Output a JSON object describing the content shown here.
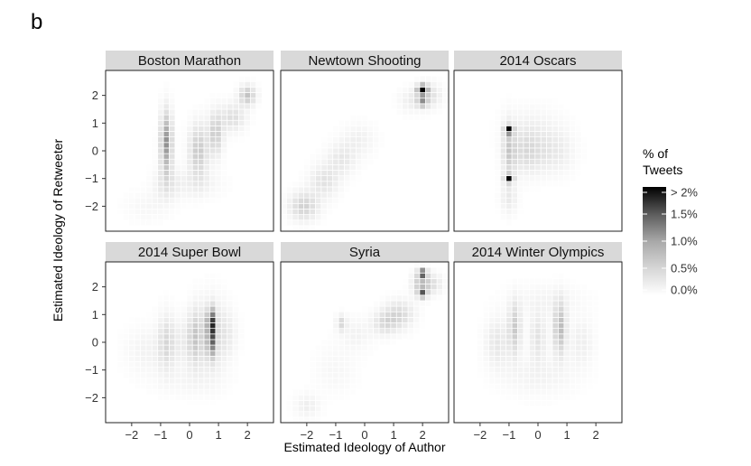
{
  "figure_label": "b",
  "chart_data": {
    "type": "heatmap",
    "xlabel": "Estimated Ideology of Author",
    "ylabel": "Estimated Ideology of Retweeter",
    "xlim": [
      -2.9,
      2.9
    ],
    "ylim": [
      -2.9,
      2.9
    ],
    "x_ticks": [
      -2,
      -1,
      0,
      1,
      2
    ],
    "y_ticks": [
      -2,
      -1,
      0,
      1,
      2
    ],
    "bin_width": 0.2,
    "grid": "white cell borders",
    "legend": {
      "title_lines": [
        "% of",
        "Tweets"
      ],
      "labels": [
        "> 2%",
        "1.5%",
        "1.0%",
        "0.5%",
        "0.0%"
      ],
      "values": [
        2.0,
        1.5,
        1.0,
        0.5,
        0.0
      ],
      "low_color": "#ffffff",
      "high_color": "#000000",
      "position": "right"
    },
    "panels": [
      {
        "title": "Boston Marathon",
        "blobs": [
          [
            -0.8,
            0.3,
            0.14,
            0.75,
            1.15
          ],
          [
            0.3,
            0.0,
            0.22,
            0.65,
            0.65
          ],
          [
            0.9,
            0.6,
            0.18,
            0.55,
            0.6
          ],
          [
            1.5,
            1.2,
            0.3,
            0.35,
            0.4
          ],
          [
            2.0,
            2.0,
            0.2,
            0.25,
            0.7
          ],
          [
            -0.8,
            -1.2,
            0.3,
            0.45,
            0.25
          ],
          [
            0.2,
            -1.2,
            0.6,
            0.35,
            0.18
          ],
          [
            -1.5,
            -2.0,
            0.5,
            0.4,
            0.1
          ]
        ]
      },
      {
        "title": "Newtown Shooting",
        "blobs": [
          [
            -2.1,
            -2.0,
            0.35,
            0.35,
            0.55
          ],
          [
            -1.4,
            -1.1,
            0.35,
            0.4,
            0.35
          ],
          [
            -0.8,
            -0.3,
            0.35,
            0.4,
            0.28
          ],
          [
            -0.2,
            0.4,
            0.4,
            0.4,
            0.18
          ],
          [
            2.0,
            2.2,
            0.12,
            0.13,
            2.0
          ],
          [
            2.0,
            1.75,
            0.12,
            0.12,
            0.9
          ],
          [
            2.2,
            2.0,
            0.3,
            0.3,
            0.4
          ],
          [
            1.6,
            1.8,
            0.3,
            0.3,
            0.2
          ]
        ]
      },
      {
        "title": "2014 Oscars",
        "blobs": [
          [
            -1.0,
            0.75,
            0.1,
            0.1,
            1.9
          ],
          [
            -1.0,
            -1.0,
            0.1,
            0.1,
            1.7
          ],
          [
            -1.0,
            0.0,
            0.15,
            0.7,
            0.5
          ],
          [
            -0.4,
            0.0,
            0.45,
            0.55,
            0.45
          ],
          [
            0.6,
            0.0,
            0.45,
            0.55,
            0.25
          ],
          [
            -1.0,
            -1.7,
            0.2,
            0.4,
            0.25
          ],
          [
            -0.2,
            1.0,
            0.7,
            0.5,
            0.1
          ]
        ]
      },
      {
        "title": "2014 Super Bowl",
        "blobs": [
          [
            0.75,
            0.75,
            0.1,
            0.35,
            1.4
          ],
          [
            0.75,
            0.0,
            0.1,
            0.4,
            1.1
          ],
          [
            0.75,
            0.25,
            0.35,
            0.9,
            0.35
          ],
          [
            0.2,
            0.2,
            0.18,
            0.7,
            0.5
          ],
          [
            -0.8,
            0.0,
            0.2,
            0.7,
            0.4
          ],
          [
            -0.2,
            0.0,
            0.35,
            0.6,
            0.2
          ],
          [
            -1.5,
            -0.3,
            0.5,
            0.6,
            0.15
          ],
          [
            1.3,
            0.3,
            0.25,
            0.6,
            0.2
          ],
          [
            0.0,
            -1.4,
            0.8,
            0.4,
            0.1
          ]
        ]
      },
      {
        "title": "Syria",
        "blobs": [
          [
            2.0,
            2.5,
            0.1,
            0.1,
            1.6
          ],
          [
            2.0,
            1.75,
            0.1,
            0.1,
            1.2
          ],
          [
            1.95,
            2.1,
            0.2,
            0.3,
            0.7
          ],
          [
            2.35,
            2.1,
            0.25,
            0.25,
            0.35
          ],
          [
            1.2,
            1.0,
            0.35,
            0.35,
            0.45
          ],
          [
            0.7,
            0.7,
            0.3,
            0.3,
            0.4
          ],
          [
            -0.8,
            0.7,
            0.12,
            0.2,
            0.45
          ],
          [
            -0.3,
            0.3,
            0.4,
            0.4,
            0.15
          ],
          [
            -2.0,
            -2.3,
            0.3,
            0.3,
            0.2
          ],
          [
            -1.0,
            -1.0,
            0.5,
            0.6,
            0.1
          ]
        ]
      },
      {
        "title": "2014 Winter Olympics",
        "blobs": [
          [
            0.75,
            0.5,
            0.15,
            0.65,
            0.8
          ],
          [
            -0.8,
            0.5,
            0.15,
            0.65,
            0.6
          ],
          [
            0.0,
            0.2,
            0.2,
            0.6,
            0.35
          ],
          [
            -1.4,
            0.0,
            0.3,
            0.6,
            0.3
          ],
          [
            1.5,
            0.0,
            0.3,
            0.6,
            0.2
          ],
          [
            0.0,
            -1.2,
            0.9,
            0.5,
            0.15
          ],
          [
            0.3,
            1.5,
            0.9,
            0.4,
            0.12
          ]
        ]
      }
    ]
  }
}
